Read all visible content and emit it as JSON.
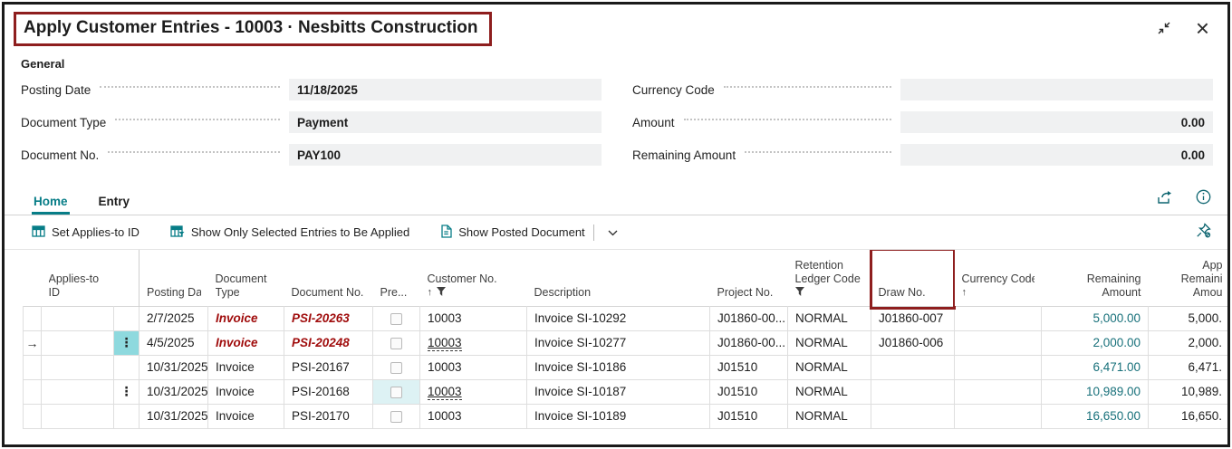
{
  "window": {
    "title": "Apply Customer Entries - 10003 · Nesbitts Construction"
  },
  "general": {
    "section_label": "General",
    "left": [
      {
        "label": "Posting Date",
        "value": "11/18/2025"
      },
      {
        "label": "Document Type",
        "value": "Payment"
      },
      {
        "label": "Document No.",
        "value": "PAY100"
      }
    ],
    "right": [
      {
        "label": "Currency Code",
        "value": ""
      },
      {
        "label": "Amount",
        "value": "0.00"
      },
      {
        "label": "Remaining Amount",
        "value": "0.00"
      }
    ]
  },
  "ribbon": {
    "tabs": [
      {
        "label": "Home"
      },
      {
        "label": "Entry"
      }
    ],
    "actions": [
      {
        "label": "Set Applies-to ID"
      },
      {
        "label": "Show Only Selected Entries to Be Applied"
      },
      {
        "label": "Show Posted Document"
      }
    ]
  },
  "table": {
    "headers": {
      "applies": [
        "Applies-to",
        "ID"
      ],
      "posting": [
        "Posting Date"
      ],
      "doctype": [
        "Document",
        "Type"
      ],
      "docno": [
        "Document No."
      ],
      "pre": [
        "Pre..."
      ],
      "custno": [
        "Customer No."
      ],
      "desc": [
        "Description"
      ],
      "project": [
        "Project No."
      ],
      "retention": [
        "Retention",
        "Ledger Code"
      ],
      "draw": [
        "Draw No."
      ],
      "currency": [
        "Currency Code"
      ],
      "remaining": [
        "Remaining",
        "Amount"
      ],
      "appl": [
        "App",
        "Remaini",
        "Amou"
      ]
    },
    "sort_arrow": "↑",
    "rows": [
      {
        "marker": "",
        "applies_to": "",
        "menu": "",
        "menu_focus": false,
        "posting_date": "2/7/2025",
        "doc_type": "Invoice",
        "doc_no": "PSI-20263",
        "overdue": true,
        "pre_focus": false,
        "customer_no": "10003",
        "customer_link": false,
        "description": "Invoice SI-10292",
        "project_no": "J01860-00...",
        "retention": "NORMAL",
        "draw_no": "J01860-007",
        "currency": "",
        "remaining": "5,000.00",
        "appl_remaining": "5,000."
      },
      {
        "marker": "→",
        "applies_to": "",
        "menu": "⋮",
        "menu_focus": true,
        "posting_date": "4/5/2025",
        "doc_type": "Invoice",
        "doc_no": "PSI-20248",
        "overdue": true,
        "pre_focus": false,
        "customer_no": "10003",
        "customer_link": true,
        "description": "Invoice SI-10277",
        "project_no": "J01860-00...",
        "retention": "NORMAL",
        "draw_no": "J01860-006",
        "currency": "",
        "remaining": "2,000.00",
        "appl_remaining": "2,000."
      },
      {
        "marker": "",
        "applies_to": "",
        "menu": "",
        "menu_focus": false,
        "posting_date": "10/31/2025",
        "doc_type": "Invoice",
        "doc_no": "PSI-20167",
        "overdue": false,
        "pre_focus": false,
        "customer_no": "10003",
        "customer_link": false,
        "description": "Invoice SI-10186",
        "project_no": "J01510",
        "retention": "NORMAL",
        "draw_no": "",
        "currency": "",
        "remaining": "6,471.00",
        "appl_remaining": "6,471."
      },
      {
        "marker": "",
        "applies_to": "",
        "menu": "⋮",
        "menu_focus": false,
        "posting_date": "10/31/2025",
        "doc_type": "Invoice",
        "doc_no": "PSI-20168",
        "overdue": false,
        "pre_focus": true,
        "customer_no": "10003",
        "customer_link": true,
        "description": "Invoice SI-10187",
        "project_no": "J01510",
        "retention": "NORMAL",
        "draw_no": "",
        "currency": "",
        "remaining": "10,989.00",
        "appl_remaining": "10,989."
      },
      {
        "marker": "",
        "applies_to": "",
        "menu": "",
        "menu_focus": false,
        "posting_date": "10/31/2025",
        "doc_type": "Invoice",
        "doc_no": "PSI-20170",
        "overdue": false,
        "pre_focus": false,
        "customer_no": "10003",
        "customer_link": false,
        "description": "Invoice SI-10189",
        "project_no": "J01510",
        "retention": "NORMAL",
        "draw_no": "",
        "currency": "",
        "remaining": "16,650.00",
        "appl_remaining": "16,650."
      }
    ]
  },
  "colors": {
    "accent_teal": "#077d87",
    "link_teal": "#17707a",
    "overdue_red": "#a00d0d",
    "annotation_red": "#8e1e1e",
    "field_bg": "#f0f1f2",
    "focus_cell_bg": "#8ed9de",
    "focus_cell_light": "#ddf2f4"
  }
}
